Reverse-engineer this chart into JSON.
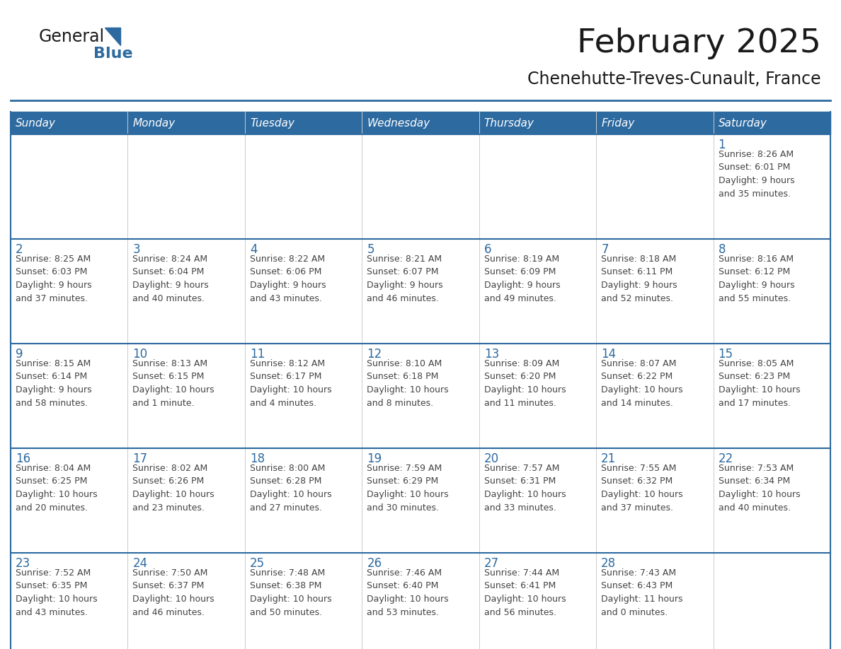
{
  "title": "February 2025",
  "subtitle": "Chenehutte-Treves-Cunault, France",
  "days_of_week": [
    "Sunday",
    "Monday",
    "Tuesday",
    "Wednesday",
    "Thursday",
    "Friday",
    "Saturday"
  ],
  "header_bg": "#2D6AA0",
  "header_text": "#FFFFFF",
  "cell_bg": "#FFFFFF",
  "row1_bg": "#F0F0F0",
  "day_num_color": "#2D6AA0",
  "text_color": "#444444",
  "border_color": "#2D6AA0",
  "logo_general_color": "#1a1a1a",
  "logo_blue_color": "#2D6AA0",
  "title_color": "#1a1a1a",
  "subtitle_color": "#1a1a1a",
  "calendar_data": [
    [
      {
        "day": null,
        "info": null
      },
      {
        "day": null,
        "info": null
      },
      {
        "day": null,
        "info": null
      },
      {
        "day": null,
        "info": null
      },
      {
        "day": null,
        "info": null
      },
      {
        "day": null,
        "info": null
      },
      {
        "day": 1,
        "info": "Sunrise: 8:26 AM\nSunset: 6:01 PM\nDaylight: 9 hours\nand 35 minutes."
      }
    ],
    [
      {
        "day": 2,
        "info": "Sunrise: 8:25 AM\nSunset: 6:03 PM\nDaylight: 9 hours\nand 37 minutes."
      },
      {
        "day": 3,
        "info": "Sunrise: 8:24 AM\nSunset: 6:04 PM\nDaylight: 9 hours\nand 40 minutes."
      },
      {
        "day": 4,
        "info": "Sunrise: 8:22 AM\nSunset: 6:06 PM\nDaylight: 9 hours\nand 43 minutes."
      },
      {
        "day": 5,
        "info": "Sunrise: 8:21 AM\nSunset: 6:07 PM\nDaylight: 9 hours\nand 46 minutes."
      },
      {
        "day": 6,
        "info": "Sunrise: 8:19 AM\nSunset: 6:09 PM\nDaylight: 9 hours\nand 49 minutes."
      },
      {
        "day": 7,
        "info": "Sunrise: 8:18 AM\nSunset: 6:11 PM\nDaylight: 9 hours\nand 52 minutes."
      },
      {
        "day": 8,
        "info": "Sunrise: 8:16 AM\nSunset: 6:12 PM\nDaylight: 9 hours\nand 55 minutes."
      }
    ],
    [
      {
        "day": 9,
        "info": "Sunrise: 8:15 AM\nSunset: 6:14 PM\nDaylight: 9 hours\nand 58 minutes."
      },
      {
        "day": 10,
        "info": "Sunrise: 8:13 AM\nSunset: 6:15 PM\nDaylight: 10 hours\nand 1 minute."
      },
      {
        "day": 11,
        "info": "Sunrise: 8:12 AM\nSunset: 6:17 PM\nDaylight: 10 hours\nand 4 minutes."
      },
      {
        "day": 12,
        "info": "Sunrise: 8:10 AM\nSunset: 6:18 PM\nDaylight: 10 hours\nand 8 minutes."
      },
      {
        "day": 13,
        "info": "Sunrise: 8:09 AM\nSunset: 6:20 PM\nDaylight: 10 hours\nand 11 minutes."
      },
      {
        "day": 14,
        "info": "Sunrise: 8:07 AM\nSunset: 6:22 PM\nDaylight: 10 hours\nand 14 minutes."
      },
      {
        "day": 15,
        "info": "Sunrise: 8:05 AM\nSunset: 6:23 PM\nDaylight: 10 hours\nand 17 minutes."
      }
    ],
    [
      {
        "day": 16,
        "info": "Sunrise: 8:04 AM\nSunset: 6:25 PM\nDaylight: 10 hours\nand 20 minutes."
      },
      {
        "day": 17,
        "info": "Sunrise: 8:02 AM\nSunset: 6:26 PM\nDaylight: 10 hours\nand 23 minutes."
      },
      {
        "day": 18,
        "info": "Sunrise: 8:00 AM\nSunset: 6:28 PM\nDaylight: 10 hours\nand 27 minutes."
      },
      {
        "day": 19,
        "info": "Sunrise: 7:59 AM\nSunset: 6:29 PM\nDaylight: 10 hours\nand 30 minutes."
      },
      {
        "day": 20,
        "info": "Sunrise: 7:57 AM\nSunset: 6:31 PM\nDaylight: 10 hours\nand 33 minutes."
      },
      {
        "day": 21,
        "info": "Sunrise: 7:55 AM\nSunset: 6:32 PM\nDaylight: 10 hours\nand 37 minutes."
      },
      {
        "day": 22,
        "info": "Sunrise: 7:53 AM\nSunset: 6:34 PM\nDaylight: 10 hours\nand 40 minutes."
      }
    ],
    [
      {
        "day": 23,
        "info": "Sunrise: 7:52 AM\nSunset: 6:35 PM\nDaylight: 10 hours\nand 43 minutes."
      },
      {
        "day": 24,
        "info": "Sunrise: 7:50 AM\nSunset: 6:37 PM\nDaylight: 10 hours\nand 46 minutes."
      },
      {
        "day": 25,
        "info": "Sunrise: 7:48 AM\nSunset: 6:38 PM\nDaylight: 10 hours\nand 50 minutes."
      },
      {
        "day": 26,
        "info": "Sunrise: 7:46 AM\nSunset: 6:40 PM\nDaylight: 10 hours\nand 53 minutes."
      },
      {
        "day": 27,
        "info": "Sunrise: 7:44 AM\nSunset: 6:41 PM\nDaylight: 10 hours\nand 56 minutes."
      },
      {
        "day": 28,
        "info": "Sunrise: 7:43 AM\nSunset: 6:43 PM\nDaylight: 11 hours\nand 0 minutes."
      },
      {
        "day": null,
        "info": null
      }
    ]
  ]
}
